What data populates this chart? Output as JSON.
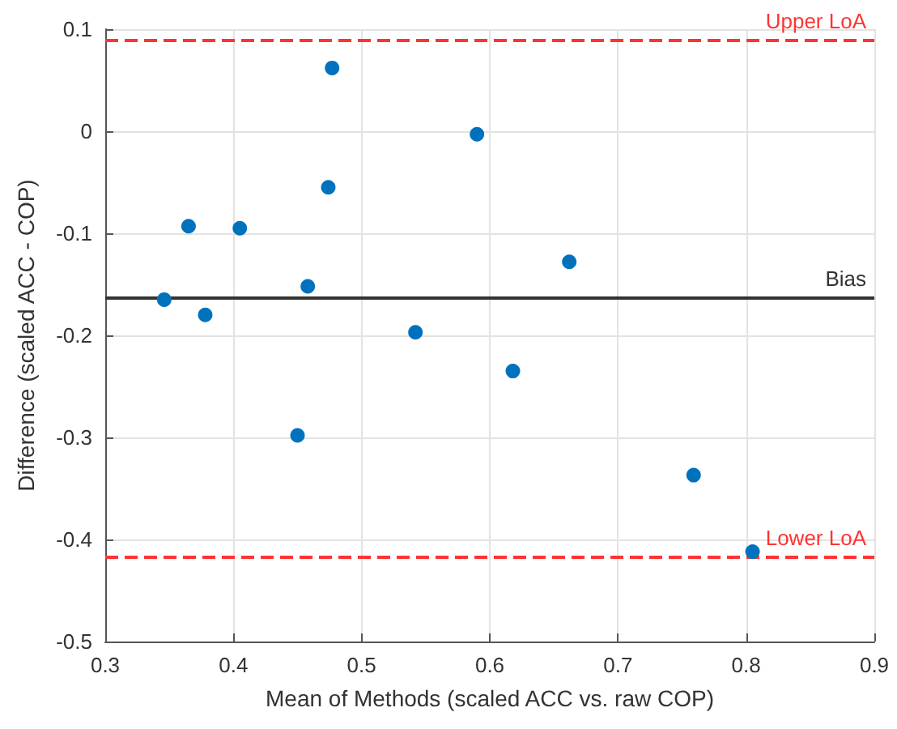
{
  "chart_data": {
    "type": "scatter",
    "xlabel": "Mean of Methods (scaled ACC vs. raw COP)",
    "ylabel": "Difference (scaled ACC - COP)",
    "x": [
      0.346,
      0.365,
      0.378,
      0.405,
      0.458,
      0.474,
      0.477,
      0.542,
      0.59,
      0.662,
      0.45,
      0.618,
      0.759,
      0.805
    ],
    "series": [
      {
        "color": "#0072bd",
        "values": [
          -0.165,
          -0.093,
          -0.18,
          -0.095,
          -0.152,
          -0.055,
          0.062,
          -0.197,
          -0.003,
          -0.128,
          -0.298,
          -0.235,
          -0.337,
          -0.412
        ]
      }
    ],
    "xlim": [
      0.3,
      0.9
    ],
    "xticks": [
      0.3,
      0.4,
      0.5,
      0.6,
      0.7,
      0.8,
      0.9
    ],
    "ylim": [
      -0.5,
      0.1
    ],
    "yticks": [
      -0.5,
      -0.4,
      -0.3,
      -0.2,
      -0.1,
      0,
      0.1
    ],
    "ref_lines": [
      {
        "axis": "y",
        "value": 0.09,
        "label": "Upper LoA",
        "color": "#ff3333",
        "line_style": "dashed"
      },
      {
        "axis": "y",
        "value": -0.163,
        "label": "Bias",
        "color": "#333333",
        "line_style": "solid"
      },
      {
        "axis": "y",
        "value": -0.417,
        "label": "Lower LoA",
        "color": "#ff3333",
        "line_style": "dashed"
      }
    ],
    "grid": true,
    "marker": "circle"
  }
}
